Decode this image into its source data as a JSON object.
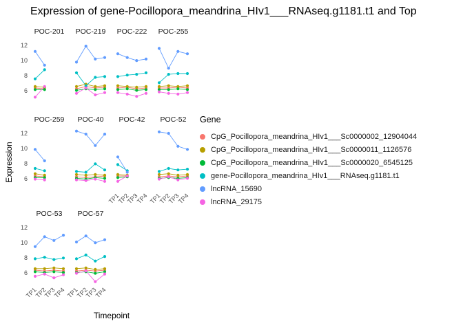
{
  "chart_data": {
    "type": "line",
    "title": "Expression of gene-Pocillopora_meandrina_HIv1___RNAseq.g1181.t1 and Top",
    "xlabel": "Timepoint",
    "ylabel": "Expression",
    "legend_title": "Gene",
    "legend_position": "right",
    "grid": false,
    "x_categories": [
      "TP1",
      "TP2",
      "TP3",
      "TP4"
    ],
    "y_ticks": [
      6,
      8,
      10,
      12
    ],
    "ylim": [
      4.6,
      12.9
    ],
    "series": [
      {
        "name": "CpG_Pocillopora_meandrina_HIv1___Sc0000002_12904044",
        "color": "#F8766D"
      },
      {
        "name": "CpG_Pocillopora_meandrina_HIv1___Sc0000011_1126576",
        "color": "#B79F00"
      },
      {
        "name": "CpG_Pocillopora_meandrina_HIv1___Sc0000020_6545125",
        "color": "#00BA38"
      },
      {
        "name": "gene-Pocillopora_meandrina_HIv1___RNAseq.g1181.t1",
        "color": "#00BFC4"
      },
      {
        "name": "lncRNA_15690",
        "color": "#619CFF"
      },
      {
        "name": "lncRNA_29175",
        "color": "#F564E3"
      }
    ],
    "facets": [
      {
        "label": "POC-201",
        "values": [
          [
            6.4,
            6.3,
            null,
            null
          ],
          [
            6.6,
            6.5,
            null,
            null
          ],
          [
            6.2,
            6.2,
            null,
            null
          ],
          [
            7.6,
            8.8,
            null,
            null
          ],
          [
            11.2,
            9.4,
            null,
            null
          ],
          [
            5.2,
            6.6,
            null,
            null
          ]
        ]
      },
      {
        "label": "POC-219",
        "values": [
          [
            6.3,
            6.6,
            6.4,
            6.5
          ],
          [
            6.6,
            6.9,
            6.6,
            6.7
          ],
          [
            6.1,
            6.3,
            6.2,
            6.3
          ],
          [
            8.4,
            6.7,
            7.8,
            7.9
          ],
          [
            9.8,
            11.9,
            10.2,
            10.4
          ],
          [
            5.7,
            6.4,
            5.5,
            5.8
          ]
        ]
      },
      {
        "label": "POC-222",
        "values": [
          [
            6.4,
            6.5,
            6.3,
            6.4
          ],
          [
            6.7,
            6.6,
            6.5,
            6.6
          ],
          [
            6.2,
            6.3,
            6.1,
            6.2
          ],
          [
            7.9,
            8.1,
            8.2,
            8.4
          ],
          [
            10.9,
            10.4,
            10.0,
            10.2
          ],
          [
            5.8,
            5.6,
            5.3,
            5.7
          ]
        ]
      },
      {
        "label": "POC-255",
        "values": [
          [
            6.4,
            6.4,
            6.5,
            6.4
          ],
          [
            6.6,
            6.7,
            6.6,
            6.7
          ],
          [
            6.2,
            6.2,
            6.3,
            6.2
          ],
          [
            7.1,
            8.2,
            8.3,
            8.3
          ],
          [
            11.6,
            9.0,
            11.2,
            10.9
          ],
          [
            5.9,
            5.7,
            5.6,
            5.8
          ]
        ]
      },
      {
        "label": "POC-259",
        "values": [
          [
            6.4,
            6.3,
            null,
            null
          ],
          [
            6.7,
            6.5,
            null,
            null
          ],
          [
            6.2,
            6.2,
            null,
            null
          ],
          [
            7.4,
            7.1,
            null,
            null
          ],
          [
            9.9,
            8.4,
            null,
            null
          ],
          [
            6.0,
            5.9,
            null,
            null
          ]
        ]
      },
      {
        "label": "POC-40",
        "values": [
          [
            6.3,
            6.2,
            6.3,
            6.4
          ],
          [
            6.6,
            6.5,
            6.6,
            6.5
          ],
          [
            6.1,
            6.0,
            6.2,
            6.1
          ],
          [
            7.0,
            6.9,
            8.0,
            7.2
          ],
          [
            12.3,
            11.9,
            10.4,
            11.9
          ],
          [
            5.9,
            5.8,
            6.0,
            5.7
          ]
        ]
      },
      {
        "label": "POC-42",
        "values": [
          [
            6.4,
            6.4,
            null,
            null
          ],
          [
            6.6,
            6.5,
            null,
            null
          ],
          [
            6.2,
            6.3,
            null,
            null
          ],
          [
            7.9,
            7.1,
            null,
            null
          ],
          [
            8.9,
            6.9,
            null,
            null
          ],
          [
            5.7,
            6.4,
            null,
            null
          ]
        ]
      },
      {
        "label": "POC-52",
        "values": [
          [
            6.3,
            6.4,
            6.3,
            6.4
          ],
          [
            6.6,
            6.7,
            6.5,
            6.6
          ],
          [
            6.1,
            6.2,
            6.1,
            6.2
          ],
          [
            7.0,
            7.4,
            7.2,
            7.3
          ],
          [
            12.2,
            12.0,
            10.3,
            9.9
          ],
          [
            6.0,
            6.3,
            5.9,
            6.1
          ]
        ]
      },
      {
        "label": "POC-53",
        "values": [
          [
            6.4,
            6.3,
            6.4,
            6.3
          ],
          [
            6.6,
            6.6,
            6.7,
            6.6
          ],
          [
            6.2,
            6.1,
            6.2,
            6.1
          ],
          [
            7.9,
            8.1,
            7.8,
            8.0
          ],
          [
            9.5,
            10.8,
            10.3,
            11.0
          ],
          [
            5.6,
            5.9,
            5.4,
            5.8
          ]
        ]
      },
      {
        "label": "POC-57",
        "values": [
          [
            6.3,
            6.4,
            6.3,
            6.4
          ],
          [
            6.6,
            6.7,
            6.5,
            6.6
          ],
          [
            6.1,
            6.2,
            6.0,
            6.2
          ],
          [
            7.9,
            8.4,
            7.6,
            8.2
          ],
          [
            10.1,
            10.9,
            10.0,
            10.4
          ],
          [
            6.0,
            6.3,
            4.9,
            5.9
          ]
        ]
      }
    ]
  }
}
